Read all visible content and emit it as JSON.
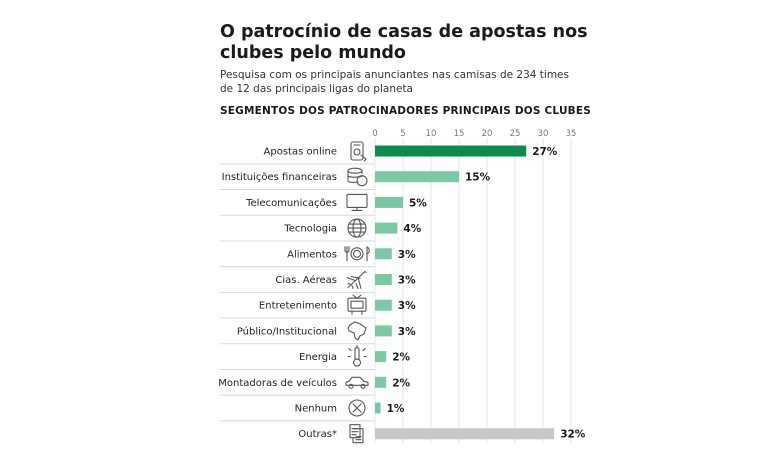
{
  "header": {
    "title": "O patrocínio de casas de apostas nos clubes pelo mundo",
    "subtitle": "Pesquisa com os principais anunciantes nas camisas de 234 times de 12 das principais ligas do planeta"
  },
  "chart_data": {
    "type": "bar",
    "orientation": "horizontal",
    "title": "SEGMENTOS DOS PATROCINADORES PRINCIPAIS DOS CLUBES",
    "xlim": [
      0,
      35
    ],
    "xticks": [
      0,
      5,
      10,
      15,
      20,
      25,
      30,
      35
    ],
    "grid": true,
    "categories": [
      "Apostas online",
      "Instituições financeiras",
      "Telecomunicações",
      "Tecnologia",
      "Alimentos",
      "Cias. Aéreas",
      "Entretenimento",
      "Público/Institucional",
      "Energia",
      "Montadoras de veículos",
      "Nenhum",
      "Outras*"
    ],
    "values": [
      27,
      15,
      5,
      4,
      3,
      3,
      3,
      3,
      2,
      2,
      1,
      32
    ],
    "value_labels": [
      "27%",
      "15%",
      "5%",
      "4%",
      "3%",
      "3%",
      "3%",
      "3%",
      "2%",
      "2%",
      "1%",
      "32%"
    ],
    "icons": [
      "phone-betting-icon",
      "coins-icon",
      "monitor-icon",
      "globe-icon",
      "plate-cutlery-icon",
      "airplane-icon",
      "television-icon",
      "brazil-map-icon",
      "thermometer-icon",
      "car-icon",
      "x-circle-icon",
      "documents-icon"
    ],
    "colors": {
      "highlight": "#0f8a4f",
      "bar": "#7cc7a4",
      "other": "#c8c8c8",
      "grid": "#e4e4e4",
      "separator": "#d9d9d9"
    }
  }
}
